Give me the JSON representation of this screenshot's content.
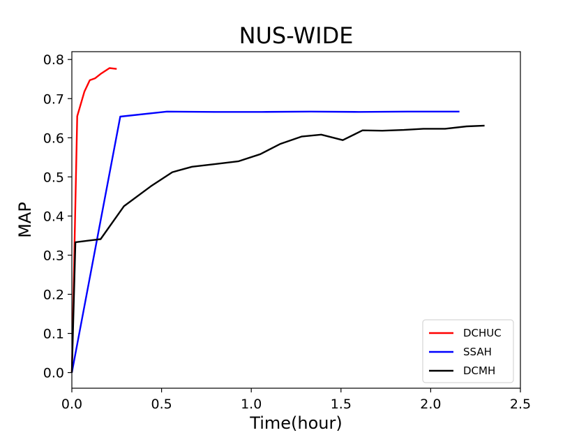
{
  "chart_data": {
    "type": "line",
    "title": "NUS-WIDE",
    "xlabel": "Time(hour)",
    "ylabel": "MAP",
    "xlim": [
      0.0,
      2.5
    ],
    "ylim": [
      -0.04,
      0.82
    ],
    "xticks": [
      "0.0",
      "0.5",
      "1.0",
      "1.5",
      "2.0",
      "2.5"
    ],
    "yticks": [
      "0.0",
      "0.1",
      "0.2",
      "0.3",
      "0.4",
      "0.5",
      "0.6",
      "0.7",
      "0.8"
    ],
    "grid": false,
    "legend_position": "lower-right",
    "series": [
      {
        "name": "DCHUC",
        "color": "#ff0000",
        "x": [
          0.0,
          0.03,
          0.07,
          0.1,
          0.13,
          0.16,
          0.21,
          0.25
        ],
        "y": [
          0.0,
          0.655,
          0.718,
          0.747,
          0.752,
          0.763,
          0.778,
          0.776
        ]
      },
      {
        "name": "SSAH",
        "color": "#0000ff",
        "x": [
          0.0,
          0.27,
          0.53,
          0.8,
          1.06,
          1.33,
          1.6,
          1.87,
          2.13,
          2.16
        ],
        "y": [
          0.0,
          0.654,
          0.667,
          0.666,
          0.666,
          0.667,
          0.666,
          0.667,
          0.667,
          0.667
        ]
      },
      {
        "name": "DCMH",
        "color": "#000000",
        "x": [
          0.0,
          0.02,
          0.16,
          0.29,
          0.44,
          0.56,
          0.67,
          0.8,
          0.93,
          1.05,
          1.16,
          1.28,
          1.39,
          1.51,
          1.62,
          1.73,
          1.85,
          1.96,
          2.08,
          2.2,
          2.3
        ],
        "y": [
          0.0,
          0.333,
          0.341,
          0.425,
          0.476,
          0.512,
          0.526,
          0.533,
          0.54,
          0.558,
          0.584,
          0.603,
          0.608,
          0.594,
          0.619,
          0.618,
          0.62,
          0.623,
          0.623,
          0.629,
          0.631
        ]
      }
    ]
  }
}
